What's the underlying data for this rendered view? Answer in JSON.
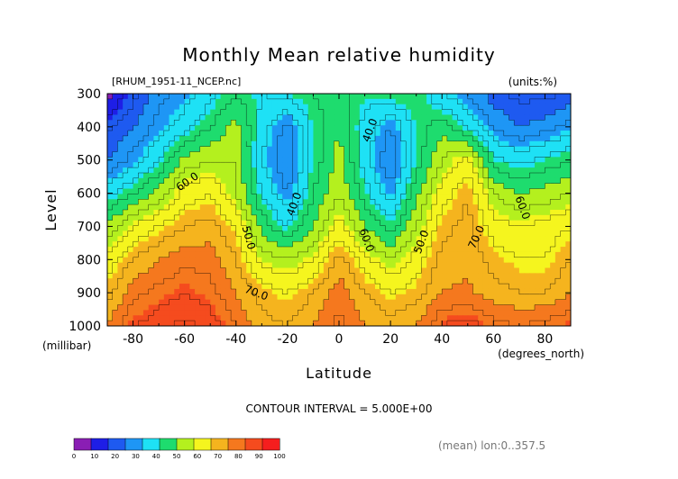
{
  "title": "Monthly Mean relative humidity",
  "file_label": "[RHUM_1951-11_NCEP.nc]",
  "units_label": "(units:%)",
  "contour_interval": "CONTOUR INTERVAL = 5.000E+00",
  "mean_note": "(mean) lon:0..357.5",
  "colorbar": {
    "colors": [
      "#8a1eb4",
      "#1e1ee6",
      "#1e5af0",
      "#1e96f5",
      "#1ee1f5",
      "#1edc6e",
      "#b4f01e",
      "#f5f51e",
      "#f5b41e",
      "#f5781e",
      "#f54b1e",
      "#f51e1e"
    ],
    "tick_labels": [
      "0",
      "10",
      "20",
      "30",
      "40",
      "50",
      "60",
      "70",
      "80",
      "90",
      "100"
    ]
  },
  "chart_data": {
    "type": "heatmap",
    "title": "Monthly Mean relative humidity",
    "xlabel": "Latitude",
    "ylabel": "Level",
    "x_unit_label": "(degrees_north)",
    "y_unit_label": "(millibar)",
    "xlim": [
      -90,
      90
    ],
    "ylim": [
      1000,
      300
    ],
    "x_ticks": [
      -80,
      -60,
      -40,
      -20,
      0,
      20,
      40,
      60,
      80
    ],
    "y_ticks": [
      300,
      400,
      500,
      600,
      700,
      800,
      900,
      1000
    ],
    "x_tick_labels": [
      "-80",
      "-60",
      "-40",
      "-20",
      "0",
      "20",
      "40",
      "60",
      "80"
    ],
    "y_tick_labels": [
      "300",
      "400",
      "500",
      "600",
      "700",
      "800",
      "900",
      "1000"
    ],
    "latitudes": [
      -90,
      -80,
      -70,
      -60,
      -50,
      -40,
      -30,
      -20,
      -10,
      0,
      10,
      20,
      30,
      40,
      50,
      60,
      70,
      80,
      90
    ],
    "levels": [
      300,
      400,
      500,
      600,
      700,
      800,
      900,
      1000
    ],
    "values": [
      [
        8,
        18,
        28,
        32,
        38,
        45,
        40,
        42,
        45,
        47,
        42,
        44,
        45,
        35,
        30,
        22,
        18,
        18,
        22
      ],
      [
        18,
        25,
        32,
        38,
        45,
        52,
        38,
        28,
        42,
        50,
        38,
        30,
        42,
        48,
        40,
        30,
        25,
        28,
        32
      ],
      [
        25,
        32,
        40,
        52,
        55,
        55,
        35,
        25,
        42,
        52,
        38,
        25,
        42,
        55,
        62,
        42,
        38,
        42,
        45
      ],
      [
        38,
        45,
        52,
        62,
        65,
        55,
        40,
        30,
        45,
        55,
        42,
        32,
        48,
        62,
        70,
        55,
        50,
        52,
        55
      ],
      [
        52,
        60,
        65,
        70,
        72,
        65,
        48,
        40,
        50,
        62,
        50,
        42,
        55,
        68,
        72,
        62,
        60,
        62,
        65
      ],
      [
        62,
        70,
        75,
        78,
        78,
        70,
        58,
        55,
        60,
        72,
        62,
        55,
        62,
        72,
        74,
        68,
        65,
        65,
        70
      ],
      [
        68,
        78,
        82,
        85,
        82,
        75,
        68,
        65,
        70,
        78,
        70,
        65,
        68,
        75,
        76,
        72,
        70,
        70,
        75
      ],
      [
        75,
        85,
        88,
        92,
        88,
        80,
        72,
        70,
        75,
        82,
        75,
        72,
        75,
        85,
        88,
        82,
        80,
        82,
        85
      ]
    ],
    "contour_labels": [
      "60.0",
      "40.0",
      "50.0",
      "70.0",
      "40.0",
      "60.0",
      "50.0",
      "70.0",
      "60.0"
    ]
  }
}
